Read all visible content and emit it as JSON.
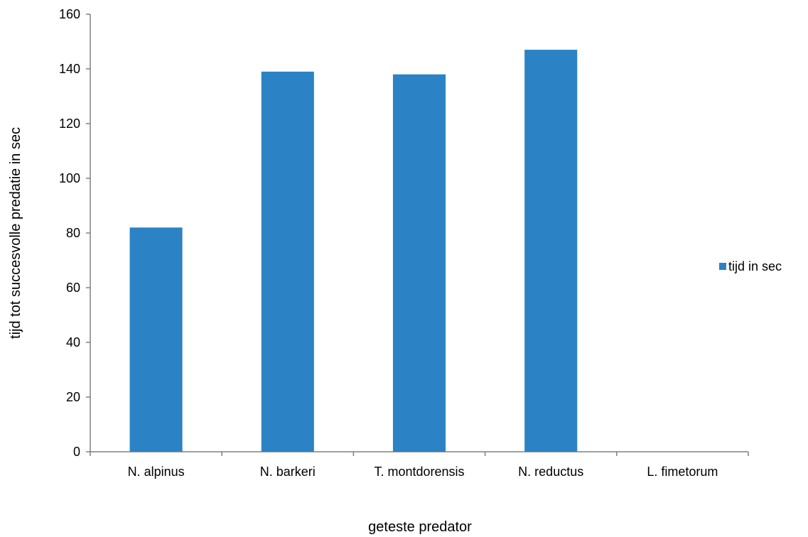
{
  "chart_data": {
    "type": "bar",
    "categories": [
      "N. alpinus",
      "N. barkeri",
      "T. montdorensis",
      "N. reductus",
      "L. fimetorum"
    ],
    "series": [
      {
        "name": "tijd in sec",
        "values": [
          82,
          139,
          138,
          147,
          0
        ],
        "color": "#2b83c5"
      }
    ],
    "xlabel": "geteste predator",
    "ylabel": "tijd tot succesvolle predatie in sec",
    "ylim": [
      0,
      160
    ],
    "yticks": [
      0,
      20,
      40,
      60,
      80,
      100,
      120,
      140,
      160
    ],
    "grid": false,
    "legend_position": "right"
  }
}
